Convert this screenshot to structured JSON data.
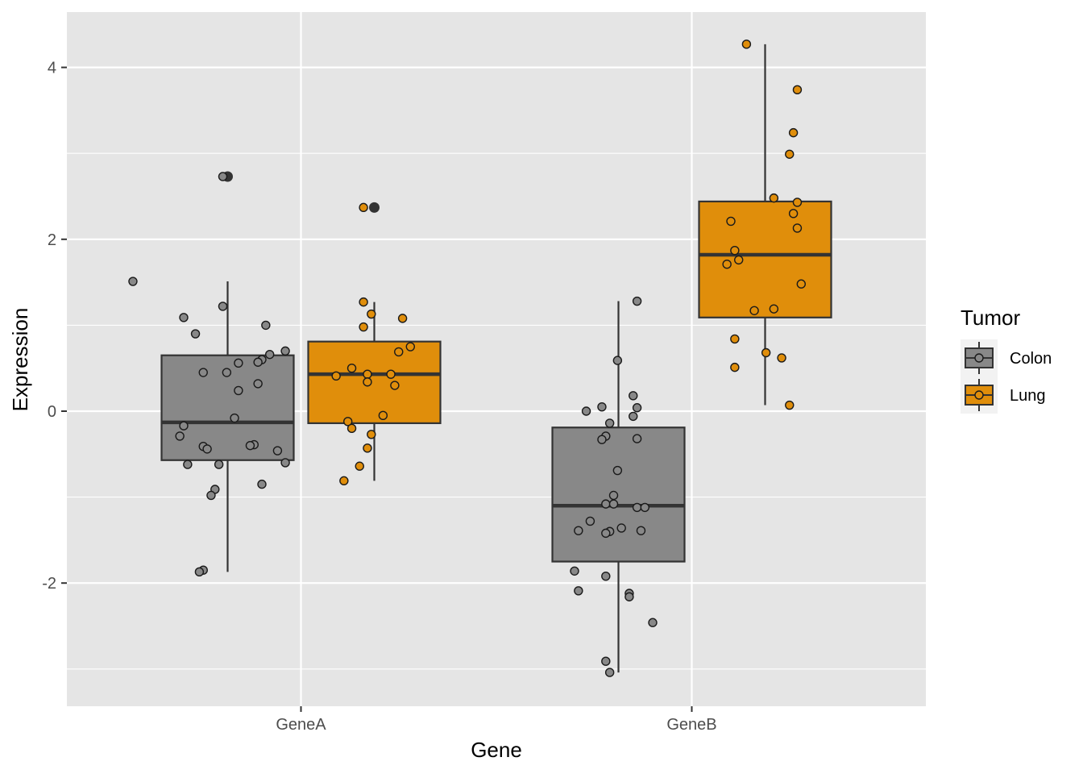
{
  "chart_data": {
    "type": "boxplot",
    "title": "",
    "xlabel": "Gene",
    "ylabel": "Expression",
    "categories": [
      "GeneA",
      "GeneB"
    ],
    "ylim": [
      -3.4,
      4.65
    ],
    "yticks": [
      -2,
      0,
      2,
      4
    ],
    "ytick_labels": [
      "-2",
      "0",
      "2",
      "4"
    ],
    "ygrid_minor": [
      -3,
      -1,
      1,
      3
    ],
    "grid": true,
    "legend": {
      "title": "Tumor",
      "position": "right",
      "entries": [
        {
          "label": "Colon",
          "color": "#888888"
        },
        {
          "label": "Lung",
          "color": "#E08E0B"
        }
      ]
    },
    "colors": {
      "panel_bg": "#E5E5E5",
      "grid": "#FFFFFF",
      "box_stroke": "#333333",
      "point_stroke": "#1A1A1A",
      "outlier": "#333333",
      "axis_text": "#4D4D4D",
      "axis_title": "#000000"
    },
    "series": [
      {
        "name": "Colon",
        "color": "#888888",
        "boxes": [
          {
            "category": "GeneA",
            "q1": -0.57,
            "median": -0.13,
            "q3": 0.65,
            "whisker_low": -1.87,
            "whisker_high": 1.51,
            "outliers": [
              2.73
            ],
            "points": [
              [
                -0.43,
                1.51
              ],
              [
                -0.3,
                1.09
              ],
              [
                -0.2,
                1.22
              ],
              [
                -0.27,
                0.9
              ],
              [
                -0.09,
                1.0
              ],
              [
                -0.04,
                0.7
              ],
              [
                -0.08,
                0.66
              ],
              [
                -0.1,
                0.6
              ],
              [
                -0.16,
                0.56
              ],
              [
                -0.11,
                0.57
              ],
              [
                -0.19,
                0.45
              ],
              [
                -0.25,
                0.45
              ],
              [
                -0.16,
                0.24
              ],
              [
                -0.11,
                0.32
              ],
              [
                -0.17,
                -0.08
              ],
              [
                -0.3,
                -0.17
              ],
              [
                -0.31,
                -0.29
              ],
              [
                -0.25,
                -0.41
              ],
              [
                -0.24,
                -0.44
              ],
              [
                -0.12,
                -0.39
              ],
              [
                -0.13,
                -0.4
              ],
              [
                -0.06,
                -0.46
              ],
              [
                -0.04,
                -0.6
              ],
              [
                -0.21,
                -0.62
              ],
              [
                -0.29,
                -0.62
              ],
              [
                -0.1,
                -0.85
              ],
              [
                -0.22,
                -0.91
              ],
              [
                -0.23,
                -0.98
              ],
              [
                -0.25,
                -1.85
              ],
              [
                -0.26,
                -1.87
              ],
              [
                -0.2,
                2.73
              ]
            ]
          },
          {
            "category": "GeneB",
            "q1": -1.75,
            "median": -1.1,
            "q3": -0.19,
            "whisker_low": -3.04,
            "whisker_high": 1.28,
            "outliers": [],
            "points": [
              [
                -0.14,
                1.28
              ],
              [
                -0.19,
                0.59
              ],
              [
                -0.23,
                0.05
              ],
              [
                -0.27,
                0.0
              ],
              [
                -0.15,
                0.18
              ],
              [
                -0.14,
                0.04
              ],
              [
                -0.15,
                -0.06
              ],
              [
                -0.21,
                -0.14
              ],
              [
                -0.22,
                -0.29
              ],
              [
                -0.23,
                -0.33
              ],
              [
                -0.14,
                -0.32
              ],
              [
                -0.19,
                -0.69
              ],
              [
                -0.2,
                -0.98
              ],
              [
                -0.22,
                -1.08
              ],
              [
                -0.2,
                -1.08
              ],
              [
                -0.14,
                -1.12
              ],
              [
                -0.12,
                -1.12
              ],
              [
                -0.26,
                -1.28
              ],
              [
                -0.18,
                -1.36
              ],
              [
                -0.21,
                -1.4
              ],
              [
                -0.22,
                -1.42
              ],
              [
                -0.29,
                -1.39
              ],
              [
                -0.13,
                -1.39
              ],
              [
                -0.3,
                -1.86
              ],
              [
                -0.22,
                -1.92
              ],
              [
                -0.29,
                -2.09
              ],
              [
                -0.16,
                -2.12
              ],
              [
                -0.16,
                -2.16
              ],
              [
                -0.1,
                -2.46
              ],
              [
                -0.22,
                -2.91
              ],
              [
                -0.21,
                -3.04
              ]
            ]
          }
        ]
      },
      {
        "name": "Lung",
        "color": "#E08E0B",
        "boxes": [
          {
            "category": "GeneA",
            "q1": -0.14,
            "median": 0.43,
            "q3": 0.81,
            "whisker_low": -0.81,
            "whisker_high": 1.27,
            "outliers": [
              2.37
            ],
            "points": [
              [
                0.16,
                1.27
              ],
              [
                0.18,
                1.13
              ],
              [
                0.26,
                1.08
              ],
              [
                0.16,
                0.98
              ],
              [
                0.28,
                0.75
              ],
              [
                0.25,
                0.69
              ],
              [
                0.13,
                0.5
              ],
              [
                0.09,
                0.41
              ],
              [
                0.17,
                0.43
              ],
              [
                0.23,
                0.43
              ],
              [
                0.17,
                0.34
              ],
              [
                0.24,
                0.3
              ],
              [
                0.21,
                -0.05
              ],
              [
                0.12,
                -0.12
              ],
              [
                0.13,
                -0.2
              ],
              [
                0.18,
                -0.27
              ],
              [
                0.17,
                -0.43
              ],
              [
                0.15,
                -0.64
              ],
              [
                0.11,
                -0.81
              ],
              [
                0.16,
                2.37
              ]
            ]
          },
          {
            "category": "GeneB",
            "q1": 1.09,
            "median": 1.82,
            "q3": 2.44,
            "whisker_low": 0.07,
            "whisker_high": 4.27,
            "outliers": [],
            "points": [
              [
                0.14,
                4.27
              ],
              [
                0.27,
                3.74
              ],
              [
                0.26,
                3.24
              ],
              [
                0.25,
                2.99
              ],
              [
                0.21,
                2.48
              ],
              [
                0.27,
                2.43
              ],
              [
                0.26,
                2.3
              ],
              [
                0.27,
                2.13
              ],
              [
                0.1,
                2.21
              ],
              [
                0.11,
                1.87
              ],
              [
                0.12,
                1.76
              ],
              [
                0.09,
                1.71
              ],
              [
                0.28,
                1.48
              ],
              [
                0.16,
                1.17
              ],
              [
                0.21,
                1.19
              ],
              [
                0.11,
                0.84
              ],
              [
                0.19,
                0.68
              ],
              [
                0.23,
                0.62
              ],
              [
                0.11,
                0.51
              ],
              [
                0.25,
                0.07
              ]
            ]
          }
        ]
      }
    ]
  }
}
